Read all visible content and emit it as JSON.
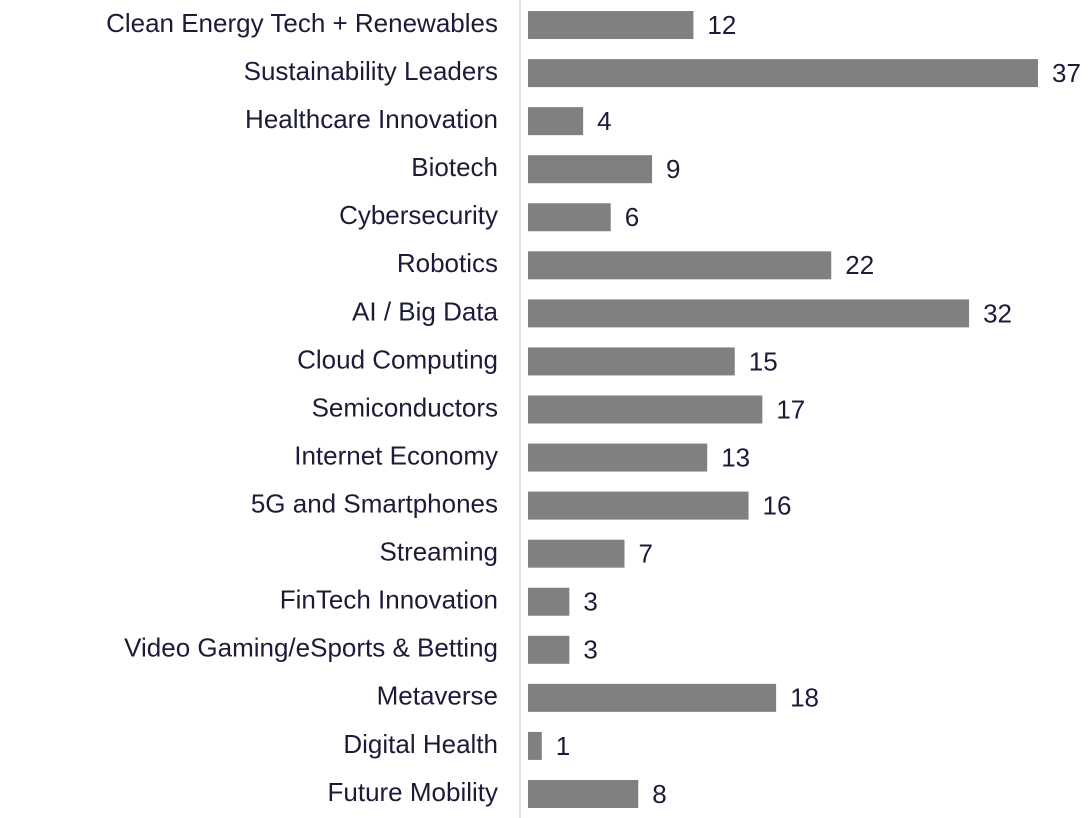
{
  "chart_data": {
    "type": "bar",
    "orientation": "horizontal",
    "categories": [
      "Clean Energy Tech + Renewables",
      "Sustainability Leaders",
      "Healthcare Innovation",
      "Biotech",
      "Cybersecurity",
      "Robotics",
      "AI / Big Data",
      "Cloud Computing",
      "Semiconductors",
      "Internet Economy",
      "5G and Smartphones",
      "Streaming",
      "FinTech Innovation",
      "Video Gaming/eSports & Betting",
      "Metaverse",
      "Digital Health",
      "Future Mobility"
    ],
    "values": [
      12,
      37,
      4,
      9,
      6,
      22,
      32,
      15,
      17,
      13,
      16,
      7,
      3,
      3,
      18,
      1,
      8
    ],
    "color": "#808080",
    "xlim": [
      0,
      37
    ],
    "grid": false
  }
}
